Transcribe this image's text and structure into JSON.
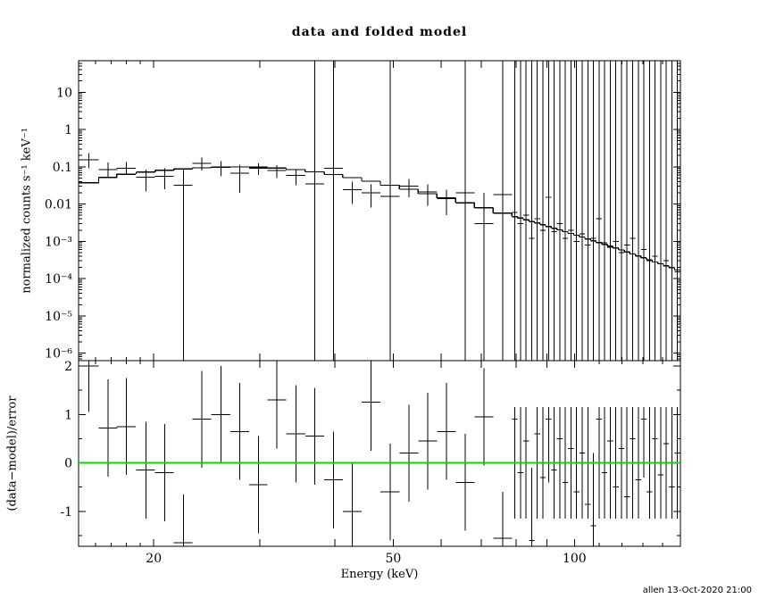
{
  "title": "data and folded model",
  "xlabel": "Energy (keV)",
  "top_ylabel": "normalized counts s⁻¹ keV⁻¹",
  "bottom_ylabel": "(data−model)/error",
  "timestamp": "allen 13-Oct-2020 21:00",
  "colors": {
    "foreground": "#000000",
    "zero_line": "#00df00",
    "background": "#ffffff"
  },
  "chart_data": [
    {
      "type": "scatter",
      "panel": "top",
      "title": "data and folded model",
      "xlabel": "Energy (keV)",
      "ylabel": "normalized counts s⁻¹ keV⁻¹",
      "xscale": "log",
      "yscale": "log",
      "xlim": [
        15,
        150
      ],
      "ylim": [
        6.3e-07,
        70
      ],
      "grid": false,
      "legend": "none",
      "x_ticks": [
        {
          "v": 20,
          "label": "20"
        },
        {
          "v": 50,
          "label": "50"
        },
        {
          "v": 100,
          "label": "100"
        }
      ],
      "y_ticks": [
        {
          "v": 10,
          "label": "10"
        },
        {
          "v": 1,
          "label": "1"
        },
        {
          "v": 0.1,
          "label": "0.1"
        },
        {
          "v": 0.01,
          "label": "0.01"
        },
        {
          "v": 0.001,
          "label": "10⁻³"
        },
        {
          "v": 0.0001,
          "label": "10⁻⁴"
        },
        {
          "v": 1e-05,
          "label": "10⁻⁵"
        },
        {
          "v": 1e-06,
          "label": "10⁻⁶"
        }
      ],
      "x": [
        15.6,
        16.8,
        18.0,
        19.4,
        20.85,
        22.4,
        24.05,
        25.85,
        27.8,
        29.85,
        32.05,
        34.45,
        37.05,
        39.8,
        42.75,
        45.95,
        49.4,
        53.1,
        57.05,
        61.3,
        65.85,
        70.75,
        76.05,
        79.6,
        81.35,
        83.1,
        84.9,
        86.75,
        88.65,
        90.55,
        92.5,
        94.5,
        96.55,
        98.65,
        100.8,
        103.0,
        105.25,
        107.55,
        109.85,
        112.2,
        114.65,
        117.15,
        119.7,
        122.3,
        124.95,
        127.65,
        130.4,
        133.25,
        136.15,
        139.1,
        142.1,
        145.15,
        148.3
      ],
      "xerr": [
        0.6,
        0.6,
        0.65,
        0.7,
        0.75,
        0.8,
        0.85,
        0.95,
        1.0,
        1.05,
        1.15,
        1.25,
        1.35,
        1.4,
        1.55,
        1.65,
        1.8,
        1.9,
        2.05,
        2.2,
        2.35,
        2.55,
        2.75,
        0.85,
        0.87,
        0.9,
        0.9,
        0.95,
        0.95,
        1.0,
        1.0,
        1.0,
        1.05,
        1.1,
        1.1,
        1.1,
        1.15,
        1.15,
        1.2,
        1.2,
        1.25,
        1.25,
        1.3,
        1.3,
        1.35,
        1.35,
        1.4,
        1.45,
        1.45,
        1.5,
        1.5,
        1.55,
        1.6
      ],
      "y": [
        0.155,
        0.085,
        0.092,
        0.052,
        0.055,
        0.032,
        0.125,
        0.095,
        0.068,
        0.092,
        0.08,
        0.058,
        0.035,
        0.09,
        0.024,
        0.02,
        0.016,
        0.03,
        0.021,
        0.014,
        0.02,
        0.003,
        0.018,
        0.006,
        0.003,
        0.005,
        0.0012,
        0.004,
        0.002,
        0.015,
        0.0018,
        0.003,
        0.0012,
        0.002,
        0.001,
        0.0016,
        0.0008,
        0.0012,
        0.004,
        0.0009,
        0.0007,
        0.001,
        0.0005,
        0.0008,
        0.0012,
        0.0004,
        0.0006,
        0.0003,
        0.0004,
        0.00025,
        0.0003,
        0.0002,
        0.00015
      ],
      "ylo": [
        0.09,
        0.05,
        0.06,
        0.022,
        0.025,
        1e-08,
        0.08,
        0.055,
        0.02,
        0.06,
        0.05,
        0.032,
        1e-08,
        1e-08,
        0.01,
        0.008,
        1e-08,
        0.015,
        0.009,
        0.005,
        1e-08,
        1e-08,
        1e-08,
        1e-08,
        1e-08,
        1e-08,
        1e-08,
        1e-08,
        1e-08,
        1e-08,
        1e-08,
        1e-08,
        1e-08,
        1e-08,
        1e-08,
        1e-08,
        1e-08,
        1e-08,
        1e-08,
        1e-08,
        1e-08,
        1e-08,
        1e-08,
        1e-08,
        1e-08,
        1e-08,
        1e-08,
        1e-08,
        1e-08,
        1e-08,
        1e-08,
        1e-08,
        1e-08
      ],
      "yhi": [
        0.23,
        0.13,
        0.135,
        0.085,
        0.09,
        0.09,
        0.175,
        0.14,
        0.115,
        0.125,
        0.11,
        0.085,
        1000,
        1000,
        0.04,
        0.034,
        1000,
        0.047,
        0.034,
        0.024,
        1000,
        0.02,
        1000,
        1000,
        1000,
        1000,
        1000,
        1000,
        1000,
        1000,
        1000,
        1000,
        1000,
        1000,
        1000,
        1000,
        1000,
        1000,
        1000,
        1000,
        1000,
        1000,
        1000,
        1000,
        1000,
        1000,
        1000,
        1000,
        1000,
        1000,
        1000,
        1000,
        1000
      ],
      "model": {
        "name": "folded model",
        "values": [
          0.037,
          0.052,
          0.063,
          0.072,
          0.08,
          0.088,
          0.094,
          0.098,
          0.099,
          0.097,
          0.092,
          0.084,
          0.073,
          0.062,
          0.051,
          0.041,
          0.032,
          0.025,
          0.019,
          0.0145,
          0.0108,
          0.0079,
          0.0057,
          0.0046,
          0.0042,
          0.0038,
          0.0034,
          0.0031,
          0.0028,
          0.0025,
          0.00225,
          0.00202,
          0.00181,
          0.00162,
          0.00145,
          0.0013,
          0.00116,
          0.00104,
          0.00093,
          0.00083,
          0.00074,
          0.00066,
          0.00059,
          0.00052,
          0.00046,
          0.00041,
          0.00036,
          0.00032,
          0.00028,
          0.00025,
          0.00022,
          0.000195,
          0.00017
        ]
      }
    },
    {
      "type": "scatter",
      "panel": "bottom",
      "ylabel": "(data−model)/error",
      "xscale": "log",
      "yscale": "linear",
      "xlim": [
        15,
        150
      ],
      "ylim": [
        -1.72,
        2.11
      ],
      "grid": false,
      "y_ticks": [
        {
          "v": 2,
          "label": "2"
        },
        {
          "v": 1,
          "label": "1"
        },
        {
          "v": 0,
          "label": "0"
        },
        {
          "v": -1,
          "label": "-1"
        }
      ],
      "zero_line": {
        "y": 0,
        "color": "#00df00"
      },
      "x_same_as_top": true,
      "resid": [
        2.0,
        0.72,
        0.75,
        -0.15,
        -0.2,
        -1.65,
        0.9,
        1.0,
        0.65,
        -0.45,
        1.3,
        0.6,
        0.55,
        -0.35,
        -1.0,
        1.25,
        -0.6,
        0.2,
        0.45,
        0.65,
        -0.4,
        0.95,
        -1.55,
        0.9,
        -0.2,
        0.45,
        -1.6,
        0.6,
        -0.3,
        0.9,
        -0.15,
        0.5,
        -0.4,
        0.3,
        -0.6,
        0.2,
        -0.85,
        -1.3,
        0.9,
        -0.2,
        0.45,
        -0.5,
        0.3,
        -0.7,
        0.5,
        -0.35,
        0.9,
        -0.6,
        0.5,
        -0.25,
        0.4,
        -0.5,
        0.2
      ],
      "rlo": [
        1.05,
        -0.28,
        -0.25,
        -1.15,
        -1.2,
        -2.65,
        -0.1,
        0.0,
        -0.35,
        -1.45,
        0.3,
        -0.4,
        -0.45,
        -1.35,
        -2.0,
        0.25,
        -1.6,
        -0.8,
        -0.55,
        -0.35,
        -1.4,
        -0.05,
        -2.5,
        -1.15,
        -1.15,
        -1.15,
        -2.2,
        -1.15,
        -1.15,
        -0.4,
        -1.15,
        -1.15,
        -1.15,
        -1.15,
        -1.15,
        -1.15,
        -1.15,
        -2.3,
        -1.15,
        -1.15,
        -1.15,
        -1.15,
        -1.15,
        -1.15,
        -1.15,
        -1.15,
        -0.3,
        -1.15,
        -1.15,
        -1.15,
        -1.15,
        -1.15,
        -1.15
      ],
      "rhi": [
        2.95,
        1.72,
        1.75,
        0.85,
        0.8,
        -0.65,
        1.9,
        2.0,
        1.65,
        0.55,
        2.3,
        1.6,
        1.55,
        0.65,
        0.0,
        2.25,
        0.4,
        1.2,
        1.45,
        1.65,
        0.6,
        1.95,
        -0.6,
        1.15,
        1.15,
        1.15,
        -0.1,
        1.15,
        1.15,
        1.15,
        1.15,
        1.15,
        1.15,
        1.15,
        1.15,
        1.15,
        1.15,
        0.2,
        1.15,
        1.15,
        1.15,
        1.15,
        1.15,
        1.15,
        1.15,
        1.15,
        1.15,
        1.15,
        1.15,
        1.15,
        1.15,
        1.15,
        1.15
      ]
    }
  ]
}
